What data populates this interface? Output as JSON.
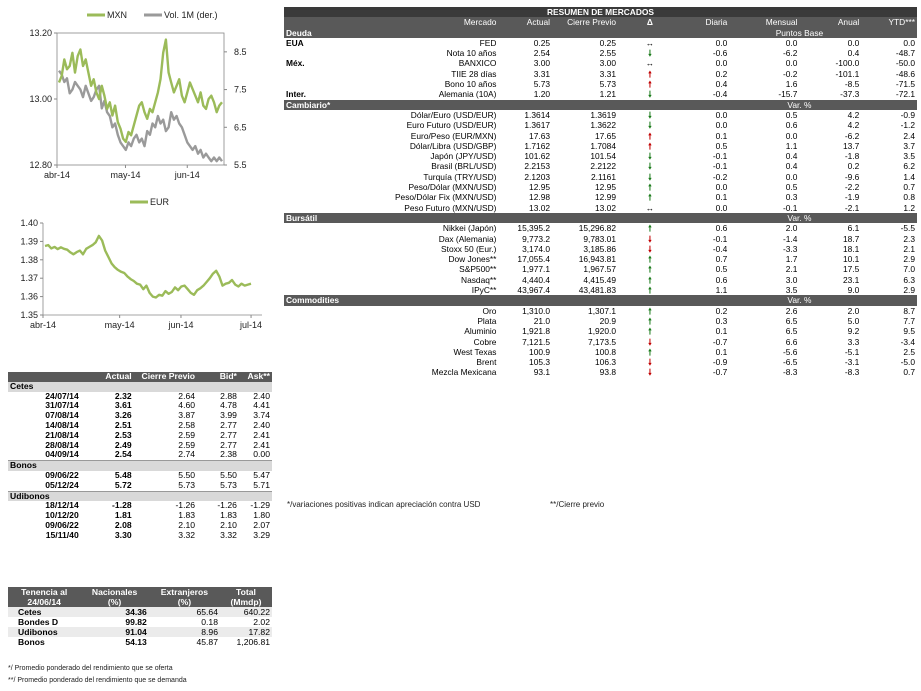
{
  "chart_data": [
    {
      "type": "line",
      "series": [
        {
          "name": "MXN",
          "axis": "left",
          "color": "#9bbb59",
          "values": [
            13.05,
            13.07,
            13.12,
            13.09,
            13.1,
            13.14,
            13.08,
            13.13,
            13.15,
            13.1,
            13.12,
            13.08,
            13.04,
            13.06,
            13.02,
            13.0,
            13.04,
            13.01,
            12.97,
            12.99,
            12.95,
            12.98,
            12.93,
            12.91,
            12.88,
            12.87,
            12.9,
            12.89,
            12.92,
            12.95,
            12.98,
            12.99,
            12.96,
            12.94,
            12.97,
            12.96,
            12.99,
            13.02,
            13.06,
            13.14,
            13.18,
            13.08,
            13.05,
            13.02,
            13.04,
            13.06,
            13.01,
            12.99,
            13.02,
            13.05,
            13.03,
            13.01,
            12.99,
            13.02,
            12.98,
            12.97,
            13.0,
            13.01,
            12.99,
            12.96,
            12.98,
            12.99
          ]
        },
        {
          "name": "Vol. 1M (der.)",
          "axis": "right",
          "color": "#9a9a9a",
          "values": [
            8.0,
            7.9,
            7.7,
            7.8,
            7.4,
            7.5,
            7.7,
            7.6,
            7.5,
            7.3,
            7.6,
            7.4,
            7.2,
            7.3,
            7.5,
            7.6,
            7.0,
            7.2,
            6.9,
            6.8,
            6.5,
            6.6,
            6.3,
            6.1,
            6.0,
            5.9,
            6.1,
            6.0,
            6.2,
            6.3,
            6.1,
            6.2,
            6.0,
            6.4,
            6.3,
            6.6,
            6.5,
            6.8,
            6.6,
            6.7,
            6.4,
            6.5,
            6.9,
            6.7,
            6.8,
            6.6,
            6.5,
            6.3,
            6.1,
            6.0,
            5.9,
            6.0,
            5.8,
            5.9,
            5.7,
            5.8,
            5.7,
            5.6,
            5.7,
            5.6,
            5.7,
            5.6
          ]
        }
      ],
      "x_labels": [
        "abr-14",
        "may-14",
        "jun-14"
      ],
      "ylim": [
        12.8,
        13.2
      ],
      "y_ticks": [
        "13.20",
        "13.00",
        "12.80"
      ],
      "y2lim": [
        5.5,
        9.0
      ],
      "y2_ticks": [
        "8.5",
        "7.5",
        "6.5",
        "5.5"
      ]
    },
    {
      "type": "line",
      "series": [
        {
          "name": "EUR",
          "color": "#9bbb59",
          "values": [
            1.3875,
            1.388,
            1.3862,
            1.387,
            1.3858,
            1.3868,
            1.386,
            1.3855,
            1.384,
            1.383,
            1.3842,
            1.385,
            1.383,
            1.386,
            1.387,
            1.388,
            1.3895,
            1.393,
            1.3905,
            1.385,
            1.3815,
            1.378,
            1.376,
            1.3745,
            1.3735,
            1.3728,
            1.371,
            1.3695,
            1.3685,
            1.367,
            1.3665,
            1.364,
            1.366,
            1.362,
            1.36,
            1.3595,
            1.361,
            1.3605,
            1.363,
            1.3615,
            1.3625,
            1.365,
            1.3635,
            1.3655,
            1.366,
            1.364,
            1.362,
            1.361,
            1.3635,
            1.3645,
            1.366,
            1.368,
            1.37,
            1.3725,
            1.374,
            1.371,
            1.366,
            1.367,
            1.3675,
            1.369,
            1.3665,
            1.3655,
            1.367,
            1.366,
            1.3665,
            1.367
          ]
        }
      ],
      "x_labels": [
        "abr-14",
        "may-14",
        "jun-14",
        "jul-14"
      ],
      "ylim": [
        1.35,
        1.4
      ],
      "y_ticks": [
        "1.40",
        "1.39",
        "1.38",
        "1.37",
        "1.36",
        "1.35"
      ]
    }
  ],
  "left_table": {
    "headers": [
      "",
      "Actual",
      "Cierre Previo",
      "Bid*",
      "Ask**"
    ],
    "sections": [
      {
        "name": "Cetes",
        "rows": [
          [
            "24/07/14",
            "2.32",
            "2.64",
            "2.88",
            "2.40"
          ],
          [
            "31/07/14",
            "3.61",
            "4.60",
            "4.78",
            "4.41"
          ],
          [
            "07/08/14",
            "3.26",
            "3.87",
            "3.99",
            "3.74"
          ],
          [
            "14/08/14",
            "2.51",
            "2.58",
            "2.77",
            "2.40"
          ],
          [
            "21/08/14",
            "2.53",
            "2.59",
            "2.77",
            "2.41"
          ],
          [
            "28/08/14",
            "2.49",
            "2.59",
            "2.77",
            "2.41"
          ],
          [
            "04/09/14",
            "2.54",
            "2.74",
            "2.38",
            "0.00"
          ]
        ]
      },
      {
        "name": "Bonos",
        "rows": [
          [
            "09/06/22",
            "5.48",
            "5.50",
            "5.50",
            "5.47"
          ],
          [
            "05/12/24",
            "5.72",
            "5.73",
            "5.73",
            "5.71"
          ]
        ]
      },
      {
        "name": "Udibonos",
        "rows": [
          [
            "18/12/14",
            "-1.28",
            "-1.26",
            "-1.26",
            "-1.29"
          ],
          [
            "10/12/20",
            "1.81",
            "1.83",
            "1.83",
            "1.80"
          ],
          [
            "09/06/22",
            "2.08",
            "2.10",
            "2.10",
            "2.07"
          ],
          [
            "15/11/40",
            "3.30",
            "3.32",
            "3.32",
            "3.29"
          ]
        ]
      }
    ]
  },
  "tenencia": {
    "headers_1": [
      "Tenencia al",
      "Nacionales",
      "Extranjeros",
      "Total"
    ],
    "headers_2": [
      "24/06/14",
      "(%)",
      "(%)",
      "(Mmdp)"
    ],
    "rows": [
      [
        "Cetes",
        "34.36",
        "65.64",
        "640.22"
      ],
      [
        "Bondes D",
        "99.82",
        "0.18",
        "2.02"
      ],
      [
        "Udibonos",
        "91.04",
        "8.96",
        "17.82"
      ],
      [
        "Bonos",
        "54.13",
        "45.87",
        "1,206.81"
      ]
    ]
  },
  "footnotes_left": [
    "*/ Promedio ponderado del rendimiento que se oferta",
    "**/ Promedio ponderado del rendimiento que se demanda"
  ],
  "summary": {
    "title": "RESUMEN DE MERCADOS",
    "columns": [
      "Mercado",
      "Actual",
      "Cierre Previo",
      "Δ",
      "Diaria",
      "Mensual",
      "Anual",
      "YTD***"
    ],
    "sections": [
      {
        "name": "Deuda",
        "unit": "Puntos Base",
        "rows": [
          {
            "g": "EUA",
            "m": "FED",
            "v": "0.25",
            "p": "0.25",
            "dir": "flat",
            "d": "0.0",
            "mm": "0.0",
            "an": "0.0",
            "y": "0.0"
          },
          {
            "g": "",
            "m": "Nota 10 años",
            "v": "2.54",
            "p": "2.55",
            "dir": "down",
            "d": "-0.6",
            "mm": "-6.2",
            "an": "0.4",
            "y": "-48.7"
          },
          {
            "g": "Méx.",
            "m": "BANXICO",
            "v": "3.00",
            "p": "3.00",
            "dir": "flat",
            "d": "0.0",
            "mm": "0.0",
            "an": "-100.0",
            "y": "-50.0"
          },
          {
            "g": "",
            "m": "TIIE 28 días",
            "v": "3.31",
            "p": "3.31",
            "dir": "up",
            "d": "0.2",
            "mm": "-0.2",
            "an": "-101.1",
            "y": "-48.6"
          },
          {
            "g": "",
            "m": "Bono 10 años",
            "v": "5.73",
            "p": "5.73",
            "dir": "up",
            "d": "0.4",
            "mm": "1.6",
            "an": "-8.5",
            "y": "-71.5"
          },
          {
            "g": "Inter.",
            "m": "Alemania (10A)",
            "v": "1.20",
            "p": "1.21",
            "dir": "down",
            "d": "-0.4",
            "mm": "-15.7",
            "an": "-37.3",
            "y": "-72.1"
          }
        ]
      },
      {
        "name": "Cambiario*",
        "unit": "Var. %",
        "rows": [
          {
            "g": "",
            "m": "Dólar/Euro (USD/EUR)",
            "v": "1.3614",
            "p": "1.3619",
            "dir": "down",
            "d": "0.0",
            "mm": "0.5",
            "an": "4.2",
            "y": "-0.9"
          },
          {
            "g": "",
            "m": "Euro Futuro (USD/EUR)",
            "v": "1.3617",
            "p": "1.3622",
            "dir": "down",
            "d": "0.0",
            "mm": "0.6",
            "an": "4.2",
            "y": "-1.2"
          },
          {
            "g": "",
            "m": "Euro/Peso (EUR/MXN)",
            "v": "17.63",
            "p": "17.65",
            "dir": "up",
            "d": "0.1",
            "mm": "0.0",
            "an": "-6.2",
            "y": "2.4"
          },
          {
            "g": "",
            "m": "Dólar/Libra (USD/GBP)",
            "v": "1.7162",
            "p": "1.7084",
            "dir": "up",
            "d": "0.5",
            "mm": "1.1",
            "an": "13.7",
            "y": "3.7"
          },
          {
            "g": "",
            "m": "Japón (JPY/USD)",
            "v": "101.62",
            "p": "101.54",
            "dir": "down",
            "d": "-0.1",
            "mm": "0.4",
            "an": "-1.8",
            "y": "3.5"
          },
          {
            "g": "",
            "m": "Brasil (BRL/USD)",
            "v": "2.2153",
            "p": "2.2122",
            "dir": "down",
            "d": "-0.1",
            "mm": "0.4",
            "an": "0.2",
            "y": "6.2"
          },
          {
            "g": "",
            "m": "Turquía (TRY/USD)",
            "v": "2.1203",
            "p": "2.1161",
            "dir": "down",
            "d": "-0.2",
            "mm": "0.0",
            "an": "-9.6",
            "y": "1.4"
          },
          {
            "g": "",
            "m": "Peso/Dólar (MXN/USD)",
            "v": "12.95",
            "p": "12.95",
            "dir": "upg",
            "d": "0.0",
            "mm": "0.5",
            "an": "-2.2",
            "y": "0.7"
          },
          {
            "g": "",
            "m": "Peso/Dólar Fix (MXN/USD)",
            "v": "12.98",
            "p": "12.99",
            "dir": "upg",
            "d": "0.1",
            "mm": "0.3",
            "an": "-1.9",
            "y": "0.8"
          },
          {
            "g": "",
            "m": "Peso Futuro (MXN/USD)",
            "v": "13.02",
            "p": "13.02",
            "dir": "flat",
            "d": "0.0",
            "mm": "-0.1",
            "an": "-2.1",
            "y": "1.2"
          }
        ]
      },
      {
        "name": "Bursátil",
        "unit": "Var. %",
        "rows": [
          {
            "g": "",
            "m": "Nikkei (Japón)",
            "v": "15,395.2",
            "p": "15,296.82",
            "dir": "upg",
            "d": "0.6",
            "mm": "2.0",
            "an": "6.1",
            "y": "-5.5"
          },
          {
            "g": "",
            "m": "Dax (Alemania)",
            "v": "9,773.2",
            "p": "9,783.01",
            "dir": "downr",
            "d": "-0.1",
            "mm": "-1.4",
            "an": "18.7",
            "y": "2.3"
          },
          {
            "g": "",
            "m": "Stoxx 50 (Eur.)",
            "v": "3,174.0",
            "p": "3,185.86",
            "dir": "downr",
            "d": "-0.4",
            "mm": "-3.3",
            "an": "18.1",
            "y": "2.1"
          },
          {
            "g": "",
            "m": "Dow Jones**",
            "v": "17,055.4",
            "p": "16,943.81",
            "dir": "upg",
            "d": "0.7",
            "mm": "1.7",
            "an": "10.1",
            "y": "2.9"
          },
          {
            "g": "",
            "m": "S&P500**",
            "v": "1,977.1",
            "p": "1,967.57",
            "dir": "upg",
            "d": "0.5",
            "mm": "2.1",
            "an": "17.5",
            "y": "7.0"
          },
          {
            "g": "",
            "m": "Nasdaq**",
            "v": "4,440.4",
            "p": "4,415.49",
            "dir": "upg",
            "d": "0.6",
            "mm": "3.0",
            "an": "23.1",
            "y": "6.3"
          },
          {
            "g": "",
            "m": "IPyC**",
            "v": "43,967.4",
            "p": "43,481.83",
            "dir": "upg",
            "d": "1.1",
            "mm": "3.5",
            "an": "9.0",
            "y": "2.9"
          }
        ]
      },
      {
        "name": "Commodities",
        "unit": "Var. %",
        "rows": [
          {
            "g": "",
            "m": "Oro",
            "v": "1,310.0",
            "p": "1,307.1",
            "dir": "upg",
            "d": "0.2",
            "mm": "2.6",
            "an": "2.0",
            "y": "8.7"
          },
          {
            "g": "",
            "m": "Plata",
            "v": "21.0",
            "p": "20.9",
            "dir": "upg",
            "d": "0.3",
            "mm": "6.5",
            "an": "5.0",
            "y": "7.7"
          },
          {
            "g": "",
            "m": "Aluminio",
            "v": "1,921.8",
            "p": "1,920.0",
            "dir": "upg",
            "d": "0.1",
            "mm": "6.5",
            "an": "9.2",
            "y": "9.5"
          },
          {
            "g": "",
            "m": "Cobre",
            "v": "7,121.5",
            "p": "7,173.5",
            "dir": "downr",
            "d": "-0.7",
            "mm": "6.6",
            "an": "3.3",
            "y": "-3.4"
          },
          {
            "g": "",
            "m": "West Texas",
            "v": "100.9",
            "p": "100.8",
            "dir": "upg",
            "d": "0.1",
            "mm": "-5.6",
            "an": "-5.1",
            "y": "2.5"
          },
          {
            "g": "",
            "m": "Brent",
            "v": "105.3",
            "p": "106.3",
            "dir": "downr",
            "d": "-0.9",
            "mm": "-6.5",
            "an": "-3.1",
            "y": "-5.0"
          },
          {
            "g": "",
            "m": "Mezcla Mexicana",
            "v": "93.1",
            "p": "93.8",
            "dir": "downr",
            "d": "-0.7",
            "mm": "-8.3",
            "an": "-8.3",
            "y": "0.7"
          }
        ]
      }
    ],
    "footnote_1": "*/variaciones positivas indican apreciación contra USD",
    "footnote_2": "**/Cierre previo"
  },
  "arrows": {
    "up": "🠕",
    "down": "🠗",
    "flat": "↔"
  }
}
